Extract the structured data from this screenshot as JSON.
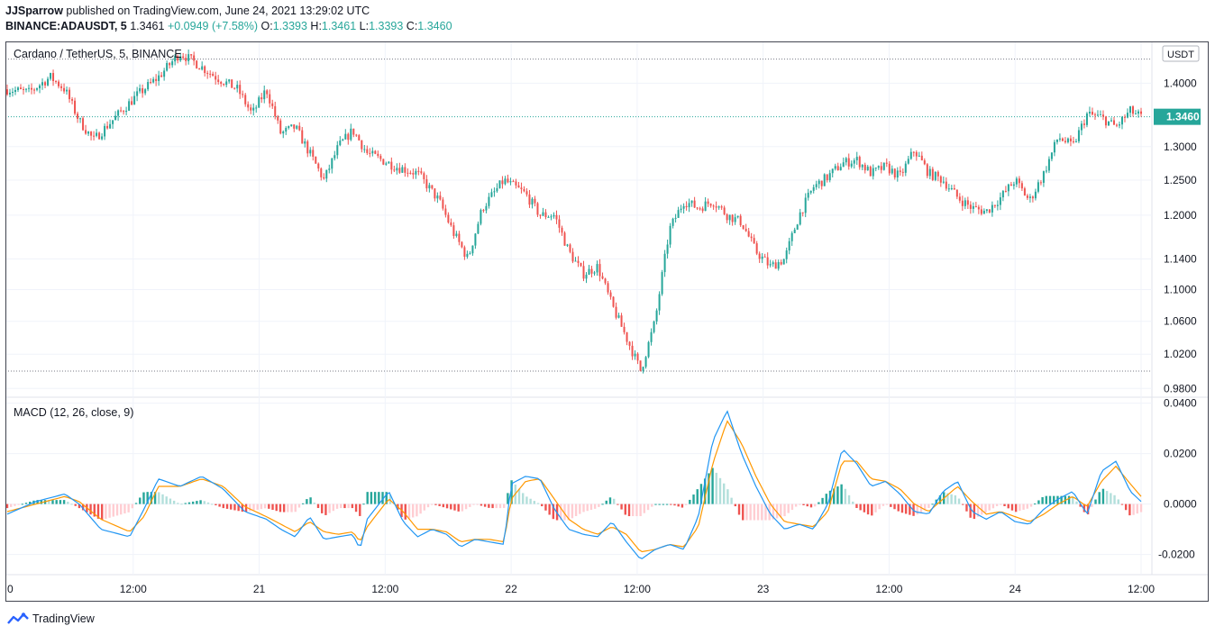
{
  "header": {
    "publisher": "JJSparrow",
    "published_text": "published on TradingView.com, June 24, 2021 13:29:02 UTC",
    "symbol_line": "BINANCE:ADAUSDT, 5",
    "price": "1.3461",
    "change": "+0.0949 (+7.58%)",
    "o_label": "O:",
    "o_value": "1.3393",
    "h_label": "H:",
    "h_value": "1.3461",
    "l_label": "L:",
    "l_value": "1.3393",
    "c_label": "C:",
    "c_value": "1.3460"
  },
  "footer": {
    "brand": "TradingView"
  },
  "colors": {
    "up": "#26a69a",
    "down": "#ef5350",
    "macd": "#2196f3",
    "signal": "#ff9800"
  },
  "chart_data": [
    {
      "type": "candlestick",
      "title": "Cardano / TetherUS, 5, BINANCE",
      "currency_label": "USDT",
      "last_price_label": "1.3460",
      "scale": "log",
      "ylim": [
        0.97,
        1.47
      ],
      "y_ticks": [
        "1.4000",
        "1.3000",
        "1.2500",
        "1.2000",
        "1.1400",
        "1.1000",
        "1.0600",
        "1.0200",
        "0.9800"
      ],
      "x_ticks": [
        "0",
        "12:00",
        "21",
        "12:00",
        "22",
        "12:00",
        "23",
        "12:00",
        "24",
        "12:00"
      ],
      "dotted_levels": [
        1.44,
        1.3461,
        1.0
      ],
      "grid": true,
      "close_path": [
        [
          0,
          1.39
        ],
        [
          0.03,
          1.385
        ],
        [
          0.06,
          1.41
        ],
        [
          0.08,
          1.39
        ],
        [
          0.1,
          1.34
        ],
        [
          0.12,
          1.31
        ],
        [
          0.15,
          1.345
        ],
        [
          0.18,
          1.38
        ],
        [
          0.21,
          1.41
        ],
        [
          0.24,
          1.45
        ],
        [
          0.26,
          1.435
        ],
        [
          0.29,
          1.41
        ],
        [
          0.32,
          1.39
        ],
        [
          0.34,
          1.35
        ],
        [
          0.36,
          1.39
        ],
        [
          0.38,
          1.32
        ],
        [
          0.4,
          1.33
        ],
        [
          0.42,
          1.29
        ],
        [
          0.44,
          1.25
        ],
        [
          0.46,
          1.3
        ],
        [
          0.48,
          1.325
        ],
        [
          0.5,
          1.29
        ],
        [
          0.52,
          1.28
        ],
        [
          0.54,
          1.27
        ],
        [
          0.57,
          1.26
        ],
        [
          0.6,
          1.22
        ],
        [
          0.62,
          1.175
        ],
        [
          0.64,
          1.14
        ],
        [
          0.66,
          1.21
        ],
        [
          0.69,
          1.25
        ],
        [
          0.72,
          1.23
        ],
        [
          0.74,
          1.2
        ],
        [
          0.76,
          1.2
        ],
        [
          0.78,
          1.15
        ],
        [
          0.8,
          1.12
        ],
        [
          0.82,
          1.13
        ],
        [
          0.84,
          1.08
        ],
        [
          0.86,
          1.04
        ],
        [
          0.88,
          1.0
        ],
        [
          0.9,
          1.06
        ],
        [
          0.92,
          1.18
        ],
        [
          0.94,
          1.22
        ],
        [
          0.96,
          1.21
        ],
        [
          0.98,
          1.22
        ],
        [
          1.0,
          1.2
        ],
        [
          1.02,
          1.19
        ],
        [
          1.04,
          1.15
        ],
        [
          1.06,
          1.13
        ],
        [
          1.08,
          1.14
        ],
        [
          1.1,
          1.2
        ],
        [
          1.12,
          1.24
        ],
        [
          1.14,
          1.255
        ],
        [
          1.16,
          1.275
        ],
        [
          1.18,
          1.28
        ],
        [
          1.2,
          1.26
        ],
        [
          1.22,
          1.27
        ],
        [
          1.24,
          1.255
        ],
        [
          1.26,
          1.295
        ],
        [
          1.28,
          1.26
        ],
        [
          1.3,
          1.25
        ],
        [
          1.32,
          1.225
        ],
        [
          1.34,
          1.21
        ],
        [
          1.36,
          1.205
        ],
        [
          1.38,
          1.225
        ],
        [
          1.4,
          1.25
        ],
        [
          1.42,
          1.22
        ],
        [
          1.44,
          1.26
        ],
        [
          1.46,
          1.315
        ],
        [
          1.48,
          1.3
        ],
        [
          1.5,
          1.35
        ],
        [
          1.52,
          1.345
        ],
        [
          1.54,
          1.33
        ],
        [
          1.56,
          1.355
        ],
        [
          1.575,
          1.346
        ]
      ]
    },
    {
      "type": "line+histogram",
      "title": "MACD (12, 26, close, 9)",
      "ylim": [
        -0.028,
        0.042
      ],
      "y_ticks": [
        "0.0400",
        "0.0200",
        "0.0000",
        "-0.0200"
      ],
      "series": [
        {
          "name": "",
          "role": "macd",
          "points": [
            [
              0,
              -0.004
            ],
            [
              0.04,
              0.001
            ],
            [
              0.08,
              0.004
            ],
            [
              0.1,
              0.0
            ],
            [
              0.13,
              -0.01
            ],
            [
              0.17,
              -0.013
            ],
            [
              0.19,
              -0.002
            ],
            [
              0.21,
              0.01
            ],
            [
              0.24,
              0.007
            ],
            [
              0.27,
              0.011
            ],
            [
              0.3,
              0.006
            ],
            [
              0.33,
              -0.003
            ],
            [
              0.36,
              -0.006
            ],
            [
              0.38,
              -0.01
            ],
            [
              0.4,
              -0.013
            ],
            [
              0.42,
              -0.005
            ],
            [
              0.44,
              -0.014
            ],
            [
              0.46,
              -0.013
            ],
            [
              0.48,
              -0.012
            ],
            [
              0.49,
              -0.018
            ],
            [
              0.5,
              -0.006
            ],
            [
              0.53,
              0.005
            ],
            [
              0.55,
              -0.007
            ],
            [
              0.57,
              -0.013
            ],
            [
              0.59,
              -0.01
            ],
            [
              0.61,
              -0.012
            ],
            [
              0.63,
              -0.017
            ],
            [
              0.65,
              -0.014
            ],
            [
              0.67,
              -0.015
            ],
            [
              0.69,
              -0.016
            ],
            [
              0.7,
              0.008
            ],
            [
              0.72,
              0.011
            ],
            [
              0.74,
              0.01
            ],
            [
              0.76,
              -0.002
            ],
            [
              0.78,
              -0.01
            ],
            [
              0.8,
              -0.012
            ],
            [
              0.82,
              -0.013
            ],
            [
              0.84,
              -0.007
            ],
            [
              0.86,
              -0.015
            ],
            [
              0.88,
              -0.022
            ],
            [
              0.9,
              -0.018
            ],
            [
              0.92,
              -0.016
            ],
            [
              0.94,
              -0.018
            ],
            [
              0.96,
              -0.005
            ],
            [
              0.98,
              0.025
            ],
            [
              1.0,
              0.037
            ],
            [
              1.02,
              0.02
            ],
            [
              1.04,
              0.007
            ],
            [
              1.06,
              -0.004
            ],
            [
              1.08,
              -0.01
            ],
            [
              1.1,
              -0.008
            ],
            [
              1.12,
              -0.01
            ],
            [
              1.14,
              0.0
            ],
            [
              1.16,
              0.022
            ],
            [
              1.18,
              0.016
            ],
            [
              1.2,
              0.007
            ],
            [
              1.22,
              0.009
            ],
            [
              1.24,
              0.004
            ],
            [
              1.26,
              -0.003
            ],
            [
              1.28,
              -0.004
            ],
            [
              1.3,
              0.005
            ],
            [
              1.32,
              0.009
            ],
            [
              1.34,
              -0.003
            ],
            [
              1.36,
              -0.006
            ],
            [
              1.38,
              -0.003
            ],
            [
              1.4,
              -0.007
            ],
            [
              1.42,
              -0.008
            ],
            [
              1.44,
              -0.002
            ],
            [
              1.46,
              0.002
            ],
            [
              1.48,
              0.005
            ],
            [
              1.5,
              -0.004
            ],
            [
              1.52,
              0.013
            ],
            [
              1.54,
              0.017
            ],
            [
              1.56,
              0.005
            ],
            [
              1.575,
              0.001
            ]
          ]
        },
        {
          "name": "",
          "role": "signal",
          "points": [
            [
              0,
              -0.003
            ],
            [
              0.04,
              0.0
            ],
            [
              0.08,
              0.003
            ],
            [
              0.1,
              0.001
            ],
            [
              0.13,
              -0.006
            ],
            [
              0.17,
              -0.011
            ],
            [
              0.19,
              -0.005
            ],
            [
              0.21,
              0.007
            ],
            [
              0.24,
              0.007
            ],
            [
              0.27,
              0.01
            ],
            [
              0.3,
              0.007
            ],
            [
              0.33,
              -0.001
            ],
            [
              0.36,
              -0.005
            ],
            [
              0.38,
              -0.008
            ],
            [
              0.4,
              -0.011
            ],
            [
              0.42,
              -0.007
            ],
            [
              0.44,
              -0.011
            ],
            [
              0.46,
              -0.012
            ],
            [
              0.48,
              -0.011
            ],
            [
              0.49,
              -0.015
            ],
            [
              0.5,
              -0.009
            ],
            [
              0.53,
              0.002
            ],
            [
              0.55,
              -0.003
            ],
            [
              0.57,
              -0.01
            ],
            [
              0.59,
              -0.01
            ],
            [
              0.61,
              -0.011
            ],
            [
              0.63,
              -0.015
            ],
            [
              0.65,
              -0.014
            ],
            [
              0.67,
              -0.014
            ],
            [
              0.69,
              -0.015
            ],
            [
              0.7,
              0.002
            ],
            [
              0.72,
              0.009
            ],
            [
              0.74,
              0.01
            ],
            [
              0.76,
              0.002
            ],
            [
              0.78,
              -0.006
            ],
            [
              0.8,
              -0.01
            ],
            [
              0.82,
              -0.012
            ],
            [
              0.84,
              -0.009
            ],
            [
              0.86,
              -0.012
            ],
            [
              0.88,
              -0.019
            ],
            [
              0.9,
              -0.018
            ],
            [
              0.92,
              -0.016
            ],
            [
              0.94,
              -0.017
            ],
            [
              0.96,
              -0.009
            ],
            [
              0.98,
              0.016
            ],
            [
              1.0,
              0.033
            ],
            [
              1.02,
              0.024
            ],
            [
              1.04,
              0.011
            ],
            [
              1.06,
              0.0
            ],
            [
              1.08,
              -0.007
            ],
            [
              1.1,
              -0.008
            ],
            [
              1.12,
              -0.009
            ],
            [
              1.14,
              -0.003
            ],
            [
              1.16,
              0.017
            ],
            [
              1.18,
              0.017
            ],
            [
              1.2,
              0.01
            ],
            [
              1.22,
              0.009
            ],
            [
              1.24,
              0.006
            ],
            [
              1.26,
              0.0
            ],
            [
              1.28,
              -0.003
            ],
            [
              1.3,
              0.002
            ],
            [
              1.32,
              0.007
            ],
            [
              1.34,
              0.001
            ],
            [
              1.36,
              -0.004
            ],
            [
              1.38,
              -0.003
            ],
            [
              1.4,
              -0.005
            ],
            [
              1.42,
              -0.007
            ],
            [
              1.44,
              -0.004
            ],
            [
              1.46,
              0.0
            ],
            [
              1.48,
              0.003
            ],
            [
              1.5,
              -0.001
            ],
            [
              1.52,
              0.009
            ],
            [
              1.54,
              0.015
            ],
            [
              1.56,
              0.008
            ],
            [
              1.575,
              0.003
            ]
          ]
        }
      ]
    }
  ]
}
